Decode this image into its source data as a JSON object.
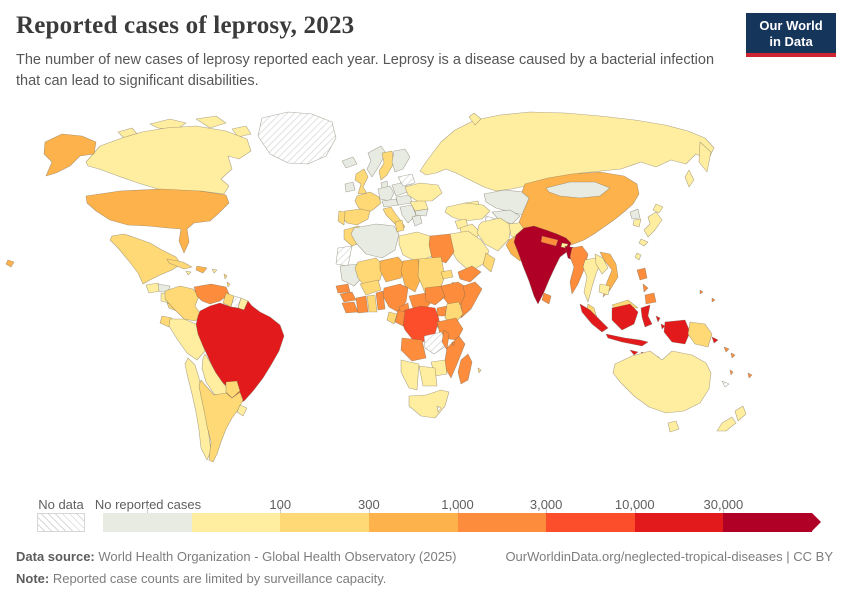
{
  "header": {
    "title": "Reported cases of leprosy, 2023",
    "subtitle": "The number of new cases of leprosy reported each year. Leprosy is a disease caused by a bacterial infection that can lead to significant disabilities.",
    "logo": {
      "line1": "Our World",
      "line2": "in Data",
      "bg": "#16355a",
      "accent": "#cf2532"
    }
  },
  "chart_data": {
    "type": "choropleth-map",
    "title": "Reported cases of leprosy, 2023",
    "year": "2023",
    "metric": "Reported new cases of leprosy",
    "legend": {
      "no_data_label": "No data",
      "no_cases_label": "No reported cases",
      "ticks": [
        "100",
        "300",
        "1,000",
        "3,000",
        "10,000",
        "30,000"
      ],
      "no_data_pattern": "diagonal-hatch",
      "categories": [
        {
          "id": "none",
          "color": "#e7ebe2",
          "tick_before": null
        },
        {
          "id": "lt-100",
          "color": "#ffeda0",
          "tick_before": null
        },
        {
          "id": "100-300",
          "color": "#fed976",
          "tick_before": "100"
        },
        {
          "id": "300-1k",
          "color": "#feb24c",
          "tick_before": "300"
        },
        {
          "id": "1k-3k",
          "color": "#fd8d3c",
          "tick_before": "1,000"
        },
        {
          "id": "3k-10k",
          "color": "#fc4e2a",
          "tick_before": "3,000"
        },
        {
          "id": "10k-30k",
          "color": "#e31a1c",
          "tick_before": "10,000"
        },
        {
          "id": "gt-30k",
          "color": "#b10026",
          "tick_before": "30,000"
        }
      ]
    },
    "regions": [
      {
        "id": "russia",
        "name": "Russia",
        "category": "lt-100"
      },
      {
        "id": "kamchatka",
        "name": "Russia (Far East)",
        "category": "lt-100"
      },
      {
        "id": "sakhalin",
        "name": "Russia (Sakhalin)",
        "category": "lt-100"
      },
      {
        "id": "novaya-zemlya",
        "name": "Russia (Novaya Zemlya)",
        "category": "lt-100"
      },
      {
        "id": "greenland",
        "name": "Greenland",
        "category": "no-data"
      },
      {
        "id": "canadian-arctic",
        "name": "Canada (Arctic Islands)",
        "category": "lt-100"
      },
      {
        "id": "canada",
        "name": "Canada",
        "category": "lt-100"
      },
      {
        "id": "alaska",
        "name": "United States (Alaska)",
        "category": "300-1k"
      },
      {
        "id": "usa",
        "name": "United States",
        "category": "300-1k"
      },
      {
        "id": "hawaii",
        "name": "United States (Hawaii)",
        "category": "300-1k"
      },
      {
        "id": "mexico",
        "name": "Mexico",
        "category": "100-300"
      },
      {
        "id": "guatemala",
        "name": "Guatemala",
        "category": "lt-100"
      },
      {
        "id": "honduras",
        "name": "Honduras",
        "category": "none"
      },
      {
        "id": "nicaragua",
        "name": "Nicaragua",
        "category": "lt-100"
      },
      {
        "id": "costa-rica-panama",
        "name": "Costa Rica / Panama",
        "category": "100-300"
      },
      {
        "id": "cuba",
        "name": "Cuba",
        "category": "100-300"
      },
      {
        "id": "hispaniola",
        "name": "Dominican Republic / Haiti",
        "category": "300-1k"
      },
      {
        "id": "jamaica",
        "name": "Jamaica",
        "category": "lt-100"
      },
      {
        "id": "puerto-rico",
        "name": "Puerto Rico",
        "category": "lt-100"
      },
      {
        "id": "lesser-antilles",
        "name": "Lesser Antilles",
        "category": "100-300"
      },
      {
        "id": "colombia",
        "name": "Colombia",
        "category": "100-300"
      },
      {
        "id": "venezuela",
        "name": "Venezuela",
        "category": "1k-3k"
      },
      {
        "id": "ecuador",
        "name": "Ecuador",
        "category": "100-300"
      },
      {
        "id": "guyana",
        "name": "Guyana",
        "category": "100-300"
      },
      {
        "id": "suriname",
        "name": "Suriname",
        "category": "no-data"
      },
      {
        "id": "french-guiana",
        "name": "French Guiana",
        "category": "lt-100"
      },
      {
        "id": "brazil",
        "name": "Brazil",
        "category": "10k-30k"
      },
      {
        "id": "peru",
        "name": "Peru",
        "category": "lt-100"
      },
      {
        "id": "bolivia",
        "name": "Bolivia",
        "category": "lt-100"
      },
      {
        "id": "paraguay",
        "name": "Paraguay",
        "category": "100-300"
      },
      {
        "id": "chile",
        "name": "Chile",
        "category": "lt-100"
      },
      {
        "id": "argentina",
        "name": "Argentina",
        "category": "100-300"
      },
      {
        "id": "uruguay",
        "name": "Uruguay",
        "category": "lt-100"
      },
      {
        "id": "iceland",
        "name": "Iceland",
        "category": "none"
      },
      {
        "id": "ireland",
        "name": "Ireland",
        "category": "none"
      },
      {
        "id": "uk",
        "name": "United Kingdom",
        "category": "100-300"
      },
      {
        "id": "norway",
        "name": "Norway",
        "category": "none"
      },
      {
        "id": "sweden",
        "name": "Sweden",
        "category": "100-300"
      },
      {
        "id": "finland",
        "name": "Finland",
        "category": "none"
      },
      {
        "id": "denmark",
        "name": "Denmark",
        "category": "none"
      },
      {
        "id": "baltic-states",
        "name": "Baltic states",
        "category": "none"
      },
      {
        "id": "germany",
        "name": "Germany",
        "category": "none"
      },
      {
        "id": "poland",
        "name": "Poland",
        "category": "none"
      },
      {
        "id": "france",
        "name": "France",
        "category": "100-300"
      },
      {
        "id": "switzerland-austria",
        "name": "Switzerland / Austria",
        "category": "none"
      },
      {
        "id": "spain",
        "name": "Spain",
        "category": "100-300"
      },
      {
        "id": "portugal",
        "name": "Portugal",
        "category": "100-300"
      },
      {
        "id": "italy",
        "name": "Italy",
        "category": "100-300"
      },
      {
        "id": "sicily",
        "name": "Italy (Sicily)",
        "category": "100-300"
      },
      {
        "id": "czechia-hungary",
        "name": "Czechia / Hungary",
        "category": "none"
      },
      {
        "id": "balkans",
        "name": "Balkans",
        "category": "none"
      },
      {
        "id": "greece",
        "name": "Greece",
        "category": "none"
      },
      {
        "id": "romania",
        "name": "Romania",
        "category": "lt-100"
      },
      {
        "id": "bulgaria",
        "name": "Bulgaria",
        "category": "none"
      },
      {
        "id": "belarus",
        "name": "Belarus",
        "category": "no-data"
      },
      {
        "id": "ukraine",
        "name": "Ukraine",
        "category": "lt-100"
      },
      {
        "id": "kazakhstan",
        "name": "Kazakhstan",
        "category": "none"
      },
      {
        "id": "uzbekistan",
        "name": "Uzbekistan",
        "category": "none"
      },
      {
        "id": "turkmenistan",
        "name": "Turkmenistan",
        "category": "no-data"
      },
      {
        "id": "kyrgyzstan-tajikistan",
        "name": "Kyrgyzstan / Tajikistan",
        "category": "none"
      },
      {
        "id": "caucasus",
        "name": "Caucasus",
        "category": "lt-100"
      },
      {
        "id": "turkey",
        "name": "Turkey",
        "category": "lt-100"
      },
      {
        "id": "syria",
        "name": "Syria",
        "category": "lt-100"
      },
      {
        "id": "iraq",
        "name": "Iraq",
        "category": "lt-100"
      },
      {
        "id": "iran",
        "name": "Iran",
        "category": "lt-100"
      },
      {
        "id": "afghanistan",
        "name": "Afghanistan",
        "category": "lt-100"
      },
      {
        "id": "pakistan",
        "name": "Pakistan",
        "category": "300-1k"
      },
      {
        "id": "saudi-arabia",
        "name": "Saudi Arabia",
        "category": "lt-100"
      },
      {
        "id": "yemen",
        "name": "Yemen",
        "category": "1k-3k"
      },
      {
        "id": "oman",
        "name": "Oman",
        "category": "100-300"
      },
      {
        "id": "china",
        "name": "China",
        "category": "300-1k"
      },
      {
        "id": "mongolia",
        "name": "Mongolia",
        "category": "none"
      },
      {
        "id": "north-korea",
        "name": "North Korea",
        "category": "none"
      },
      {
        "id": "south-korea",
        "name": "South Korea",
        "category": "lt-100"
      },
      {
        "id": "japan",
        "name": "Japan",
        "category": "lt-100"
      },
      {
        "id": "taiwan",
        "name": "Taiwan",
        "category": "lt-100"
      },
      {
        "id": "india",
        "name": "India",
        "category": "gt-30k"
      },
      {
        "id": "nepal",
        "name": "Nepal",
        "category": "1k-3k"
      },
      {
        "id": "bhutan",
        "name": "Bhutan",
        "category": "lt-100"
      },
      {
        "id": "bangladesh",
        "name": "Bangladesh",
        "category": "gt-30k"
      },
      {
        "id": "myanmar",
        "name": "Myanmar",
        "category": "1k-3k"
      },
      {
        "id": "sri-lanka",
        "name": "Sri Lanka",
        "category": "1k-3k"
      },
      {
        "id": "thailand",
        "name": "Thailand",
        "category": "lt-100"
      },
      {
        "id": "laos",
        "name": "Laos",
        "category": "lt-100"
      },
      {
        "id": "vietnam",
        "name": "Vietnam",
        "category": "300-1k"
      },
      {
        "id": "cambodia",
        "name": "Cambodia",
        "category": "lt-100"
      },
      {
        "id": "malaysia-peninsula",
        "name": "Malaysia (Peninsular)",
        "category": "100-300"
      },
      {
        "id": "malaysia-borneo",
        "name": "Malaysia (Borneo)",
        "category": "100-300"
      },
      {
        "id": "philippines",
        "name": "Philippines",
        "category": "1k-3k"
      },
      {
        "id": "indonesia-sumatra",
        "name": "Indonesia (Sumatra)",
        "category": "10k-30k"
      },
      {
        "id": "indonesia-java",
        "name": "Indonesia (Java)",
        "category": "10k-30k"
      },
      {
        "id": "indonesia-kalimantan",
        "name": "Indonesia (Kalimantan)",
        "category": "10k-30k"
      },
      {
        "id": "indonesia-sulawesi",
        "name": "Indonesia (Sulawesi)",
        "category": "10k-30k"
      },
      {
        "id": "indonesia-moluccas",
        "name": "Indonesia (Moluccas)",
        "category": "10k-30k"
      },
      {
        "id": "indonesia-lesser-sunda",
        "name": "Indonesia (Lesser Sunda)",
        "category": "10k-30k"
      },
      {
        "id": "indonesia-papua",
        "name": "Indonesia (Papua)",
        "category": "10k-30k"
      },
      {
        "id": "papua-new-guinea",
        "name": "Papua New Guinea",
        "category": "100-300"
      },
      {
        "id": "new-britain",
        "name": "Papua New Guinea (New Britain)",
        "category": "10k-30k"
      },
      {
        "id": "solomon-islands",
        "name": "Solomon Islands",
        "category": "1k-3k"
      },
      {
        "id": "vanuatu",
        "name": "Vanuatu",
        "category": "1k-3k"
      },
      {
        "id": "new-caledonia",
        "name": "New Caledonia",
        "category": "no-data"
      },
      {
        "id": "fiji",
        "name": "Fiji",
        "category": "1k-3k"
      },
      {
        "id": "timor",
        "name": "Timor-Leste",
        "category": "100-300"
      },
      {
        "id": "micronesia",
        "name": "Micronesia",
        "category": "1k-3k"
      },
      {
        "id": "australia",
        "name": "Australia",
        "category": "lt-100"
      },
      {
        "id": "tasmania",
        "name": "Australia (Tasmania)",
        "category": "lt-100"
      },
      {
        "id": "new-zealand",
        "name": "New Zealand",
        "category": "lt-100"
      },
      {
        "id": "morocco",
        "name": "Morocco",
        "category": "100-300"
      },
      {
        "id": "western-sahara",
        "name": "Western Sahara",
        "category": "no-data"
      },
      {
        "id": "algeria",
        "name": "Algeria",
        "category": "none"
      },
      {
        "id": "tunisia",
        "name": "Tunisia",
        "category": "100-300"
      },
      {
        "id": "libya",
        "name": "Libya",
        "category": "lt-100"
      },
      {
        "id": "egypt",
        "name": "Egypt",
        "category": "1k-3k"
      },
      {
        "id": "mauritania",
        "name": "Mauritania",
        "category": "none"
      },
      {
        "id": "mali",
        "name": "Mali",
        "category": "100-300"
      },
      {
        "id": "niger",
        "name": "Niger",
        "category": "300-1k"
      },
      {
        "id": "chad",
        "name": "Chad",
        "category": "300-1k"
      },
      {
        "id": "sudan",
        "name": "Sudan",
        "category": "100-300"
      },
      {
        "id": "eritrea",
        "name": "Eritrea",
        "category": "100-300"
      },
      {
        "id": "djibouti",
        "name": "Djibouti",
        "category": "lt-100"
      },
      {
        "id": "ethiopia",
        "name": "Ethiopia",
        "category": "1k-3k"
      },
      {
        "id": "somalia",
        "name": "Somalia",
        "category": "1k-3k"
      },
      {
        "id": "senegal",
        "name": "Senegal",
        "category": "1k-3k"
      },
      {
        "id": "guinea",
        "name": "Guinea",
        "category": "1k-3k"
      },
      {
        "id": "sierra-leone-liberia",
        "name": "Sierra Leone / Liberia",
        "category": "1k-3k"
      },
      {
        "id": "cote-divoire",
        "name": "Côte d'Ivoire",
        "category": "1k-3k"
      },
      {
        "id": "ghana",
        "name": "Ghana",
        "category": "100-300"
      },
      {
        "id": "togo-benin",
        "name": "Togo / Benin",
        "category": "1k-3k"
      },
      {
        "id": "burkina-faso",
        "name": "Burkina Faso",
        "category": "100-300"
      },
      {
        "id": "nigeria",
        "name": "Nigeria",
        "category": "1k-3k"
      },
      {
        "id": "cameroon",
        "name": "Cameroon",
        "category": "1k-3k"
      },
      {
        "id": "central-african-republic",
        "name": "Central African Republic",
        "category": "1k-3k"
      },
      {
        "id": "south-sudan",
        "name": "South Sudan",
        "category": "1k-3k"
      },
      {
        "id": "uganda",
        "name": "Uganda",
        "category": "1k-3k"
      },
      {
        "id": "rwanda-burundi",
        "name": "Rwanda / Burundi",
        "category": "1k-3k"
      },
      {
        "id": "kenya",
        "name": "Kenya",
        "category": "100-300"
      },
      {
        "id": "dr-congo",
        "name": "Democratic Republic of Congo",
        "category": "3k-10k"
      },
      {
        "id": "congo",
        "name": "Congo",
        "category": "1k-3k"
      },
      {
        "id": "gabon",
        "name": "Gabon",
        "category": "100-300"
      },
      {
        "id": "tanzania",
        "name": "Tanzania",
        "category": "1k-3k"
      },
      {
        "id": "angola",
        "name": "Angola",
        "category": "1k-3k"
      },
      {
        "id": "zambia",
        "name": "Zambia",
        "category": "no-data"
      },
      {
        "id": "malawi",
        "name": "Malawi",
        "category": "1k-3k"
      },
      {
        "id": "mozambique",
        "name": "Mozambique",
        "category": "1k-3k"
      },
      {
        "id": "zimbabwe",
        "name": "Zimbabwe",
        "category": "lt-100"
      },
      {
        "id": "botswana",
        "name": "Botswana",
        "category": "lt-100"
      },
      {
        "id": "namibia",
        "name": "Namibia",
        "category": "lt-100"
      },
      {
        "id": "south-africa",
        "name": "South Africa",
        "category": "lt-100"
      },
      {
        "id": "lesotho",
        "name": "Lesotho",
        "category": "no-data"
      },
      {
        "id": "madagascar",
        "name": "Madagascar",
        "category": "1k-3k"
      },
      {
        "id": "comoros",
        "name": "Comoros",
        "category": "1k-3k"
      },
      {
        "id": "mauritius",
        "name": "Mauritius",
        "category": "100-300"
      }
    ]
  },
  "footer": {
    "data_source_label": "Data source:",
    "data_source": " World Health Organization - Global Health Observatory (2025)",
    "link": "OurWorldinData.org/neglected-tropical-diseases | CC BY",
    "note_label": "Note:",
    "note": " Reported case counts are limited by surveillance capacity."
  }
}
